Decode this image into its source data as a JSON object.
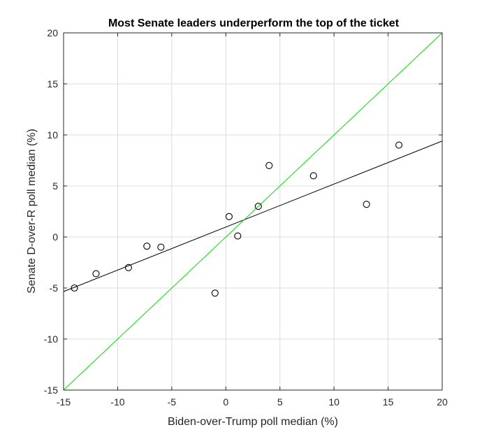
{
  "chart_data": {
    "type": "scatter",
    "title": "Most Senate leaders underperform the top of the ticket",
    "xlabel": "Biden-over-Trump poll median (%)",
    "ylabel": "Senate D-over-R poll median (%)",
    "xlim": [
      -15,
      20
    ],
    "ylim": [
      -15,
      20
    ],
    "xticks": [
      -15,
      -10,
      -5,
      0,
      5,
      10,
      15,
      20
    ],
    "yticks": [
      -15,
      -10,
      -5,
      0,
      5,
      10,
      15,
      20
    ],
    "xtick_labels": [
      "-15",
      "-10",
      "-5",
      "0",
      "5",
      "10",
      "15",
      "20"
    ],
    "ytick_labels": [
      "-15",
      "-10",
      "-5",
      "0",
      "5",
      "10",
      "15",
      "20"
    ],
    "grid": true,
    "points": [
      {
        "x": -14,
        "y": -5
      },
      {
        "x": -12,
        "y": -3.6
      },
      {
        "x": -9,
        "y": -3
      },
      {
        "x": -7.3,
        "y": -0.9
      },
      {
        "x": -6,
        "y": -1
      },
      {
        "x": -1,
        "y": -5.5
      },
      {
        "x": 0.3,
        "y": 2
      },
      {
        "x": 1.1,
        "y": 0.1
      },
      {
        "x": 3,
        "y": 3
      },
      {
        "x": 4,
        "y": 7
      },
      {
        "x": 8.1,
        "y": 6
      },
      {
        "x": 13,
        "y": 3.2
      },
      {
        "x": 16,
        "y": 9
      }
    ],
    "lines": [
      {
        "kind": "fit",
        "color": "#000000",
        "x": [
          -15,
          20
        ],
        "y": [
          -5.35,
          9.4
        ]
      },
      {
        "kind": "identity",
        "color": "#00e000",
        "x": [
          -15,
          20
        ],
        "y": [
          -15,
          20
        ]
      }
    ],
    "marker_color": "#000000",
    "grid_color": "#dcdcdc"
  }
}
